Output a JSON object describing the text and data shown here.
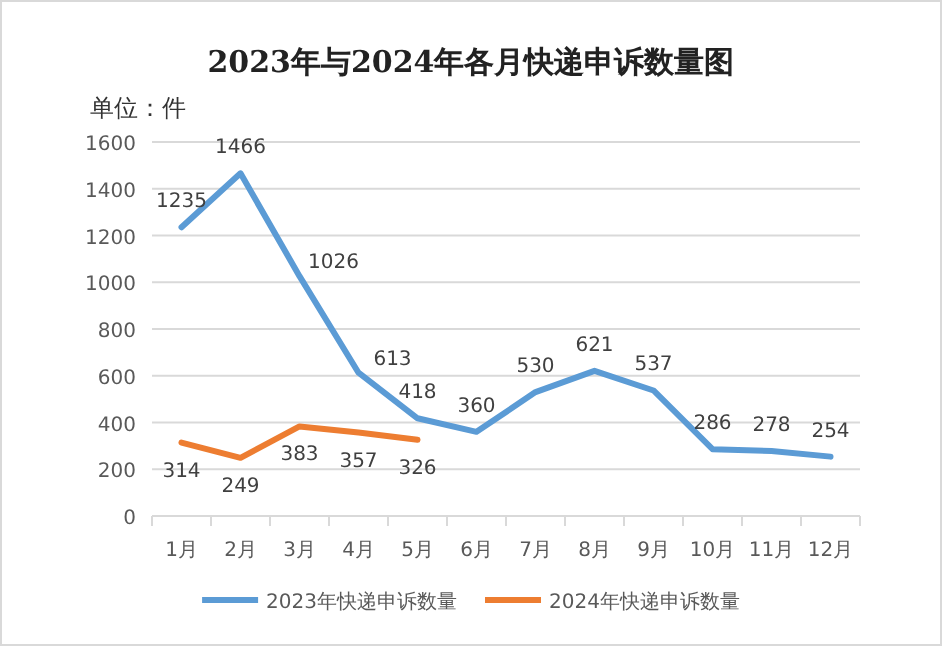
{
  "chart_data": {
    "type": "line",
    "title": "2023年与2024年各月快递申诉数量图",
    "ylabel": "单位：件",
    "categories": [
      "1月",
      "2月",
      "3月",
      "4月",
      "5月",
      "6月",
      "7月",
      "8月",
      "9月",
      "10月",
      "11月",
      "12月"
    ],
    "series": [
      {
        "name": "2023年快递申诉数量",
        "color": "#5b9bd5",
        "values": [
          1235,
          1466,
          1026,
          613,
          418,
          360,
          530,
          621,
          537,
          286,
          278,
          254
        ]
      },
      {
        "name": "2024年快递申诉数量",
        "color": "#ed7d31",
        "values": [
          314,
          249,
          383,
          357,
          326,
          null,
          null,
          null,
          null,
          null,
          null,
          null
        ]
      }
    ],
    "ylim": [
      0,
      1600
    ],
    "yticks": [
      0,
      200,
      400,
      600,
      800,
      1000,
      1200,
      1400,
      1600
    ],
    "grid": "y",
    "legend": "bottom",
    "data_labels": true,
    "marker": "none",
    "line_style": "solid"
  }
}
